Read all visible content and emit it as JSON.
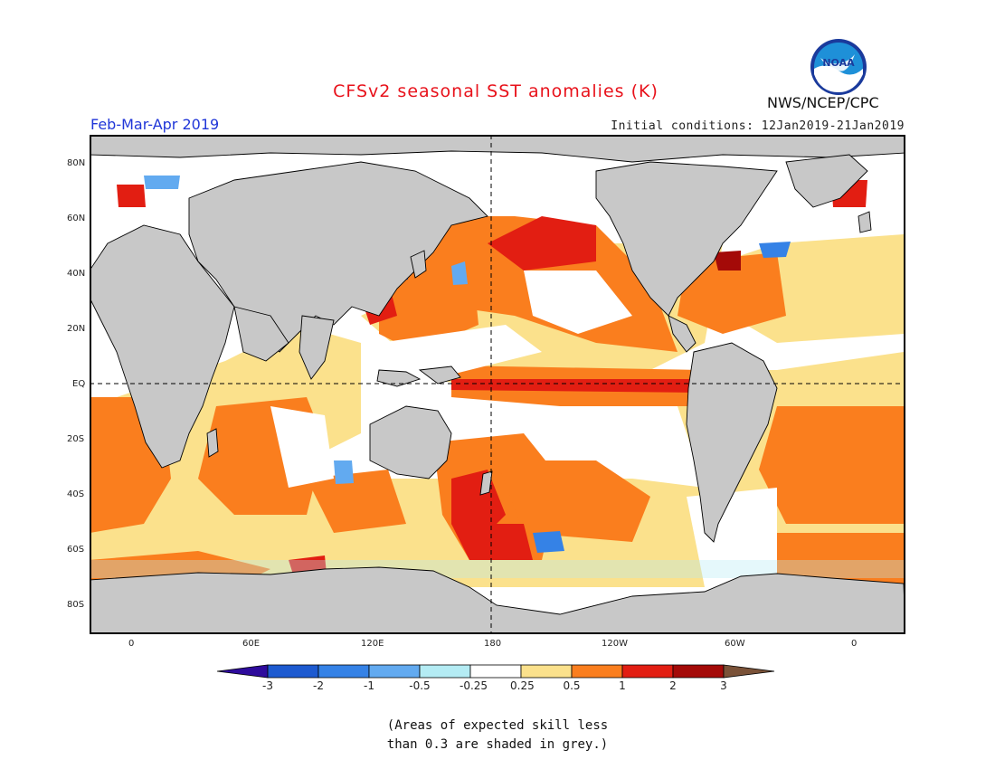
{
  "header": {
    "title": "CFSv2 seasonal SST anomalies (K)",
    "period": "Feb-Mar-Apr 2019",
    "initial_conditions": "Initial conditions: 12Jan2019-21Jan2019",
    "agency": "NWS/NCEP/CPC",
    "logo_text": "NOAA"
  },
  "map": {
    "lat_labels": [
      "80N",
      "60N",
      "40N",
      "20N",
      "EQ",
      "20S",
      "40S",
      "60S",
      "80S"
    ],
    "lon_labels": [
      "0",
      "60E",
      "120E",
      "180",
      "120W",
      "60W",
      "0"
    ],
    "ocean_base_color": "#ffffff",
    "land_color": "#c8c8c8"
  },
  "colorbar": {
    "labels": [
      "-3",
      "-2",
      "-1",
      "-0.5",
      "-0.25",
      "0.25",
      "0.5",
      "1",
      "2",
      "3"
    ],
    "colors": [
      "#2e0b9c",
      "#1d5ad0",
      "#3582e6",
      "#62aaf0",
      "#b4ecf4",
      "#ffffff",
      "#fbe18c",
      "#fa7e1e",
      "#e21e12",
      "#a40a08",
      "#7a5238"
    ]
  },
  "footnote": {
    "line1": "(Areas of expected skill less",
    "line2": "than 0.3 are shaded in grey.)"
  }
}
